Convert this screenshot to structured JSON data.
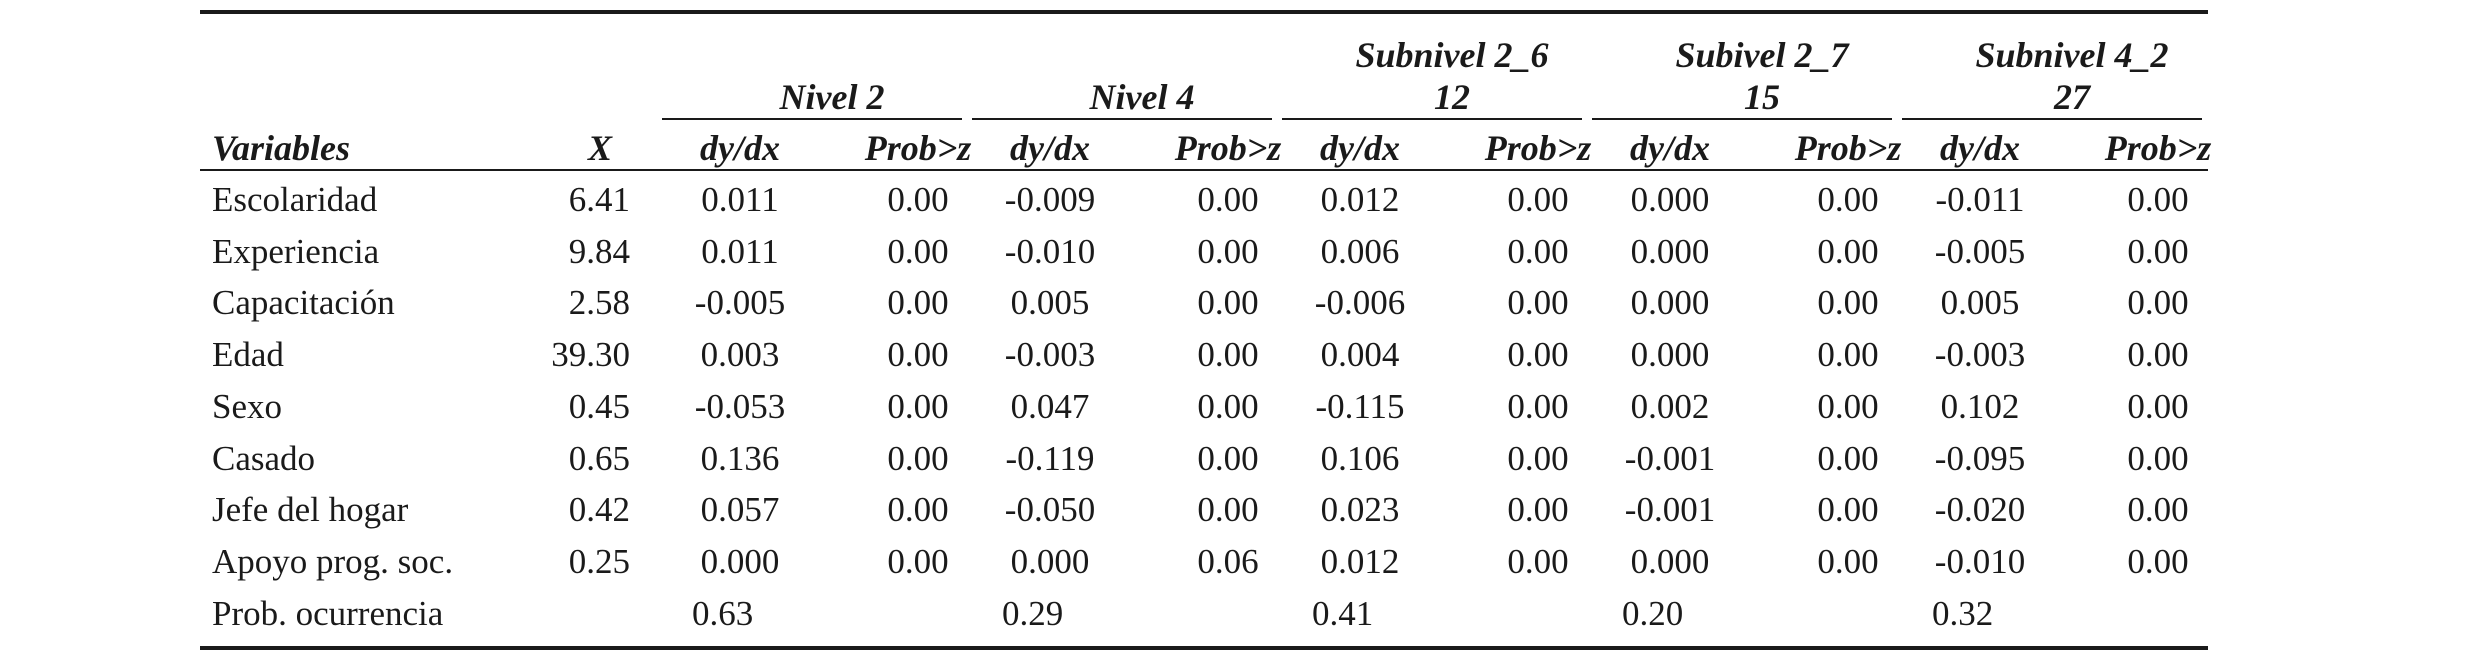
{
  "table": {
    "groups": [
      {
        "line1": "",
        "line2": "Nivel 2"
      },
      {
        "line1": "",
        "line2": "Nivel 4"
      },
      {
        "line1": "Subnivel 2_6",
        "line2": "12"
      },
      {
        "line1": "Subivel 2_7",
        "line2": "15"
      },
      {
        "line1": "Subnivel 4_2",
        "line2": "27"
      }
    ],
    "headers": {
      "variables": "Variables",
      "x": "X",
      "dydx": "dy/dx",
      "prob": "Prob>z"
    },
    "rows": [
      {
        "label": "Escolaridad",
        "x": "6.41",
        "cells": [
          "0.011",
          "0.00",
          "-0.009",
          "0.00",
          "0.012",
          "0.00",
          "0.000",
          "0.00",
          "-0.011",
          "0.00"
        ]
      },
      {
        "label": "Experiencia",
        "x": "9.84",
        "cells": [
          "0.011",
          "0.00",
          "-0.010",
          "0.00",
          "0.006",
          "0.00",
          "0.000",
          "0.00",
          "-0.005",
          "0.00"
        ]
      },
      {
        "label": "Capacitación",
        "x": "2.58",
        "cells": [
          "-0.005",
          "0.00",
          "0.005",
          "0.00",
          "-0.006",
          "0.00",
          "0.000",
          "0.00",
          "0.005",
          "0.00"
        ]
      },
      {
        "label": "Edad",
        "x": "39.30",
        "cells": [
          "0.003",
          "0.00",
          "-0.003",
          "0.00",
          "0.004",
          "0.00",
          "0.000",
          "0.00",
          "-0.003",
          "0.00"
        ]
      },
      {
        "label": "Sexo",
        "x": "0.45",
        "cells": [
          "-0.053",
          "0.00",
          "0.047",
          "0.00",
          "-0.115",
          "0.00",
          "0.002",
          "0.00",
          "0.102",
          "0.00"
        ]
      },
      {
        "label": "Casado",
        "x": "0.65",
        "cells": [
          "0.136",
          "0.00",
          "-0.119",
          "0.00",
          "0.106",
          "0.00",
          "-0.001",
          "0.00",
          "-0.095",
          "0.00"
        ]
      },
      {
        "label": "Jefe del hogar",
        "x": "0.42",
        "cells": [
          "0.057",
          "0.00",
          "-0.050",
          "0.00",
          "0.023",
          "0.00",
          "-0.001",
          "0.00",
          "-0.020",
          "0.00"
        ]
      },
      {
        "label": "Apoyo prog. soc.",
        "x": "0.25",
        "cells": [
          "0.000",
          "0.00",
          "0.000",
          "0.06",
          "0.012",
          "0.00",
          "0.000",
          "0.00",
          "-0.010",
          "0.00"
        ]
      }
    ],
    "footer": {
      "label": "Prob. ocurrencia",
      "values": [
        "0.63",
        "0.29",
        "0.41",
        "0.20",
        "0.32"
      ]
    }
  }
}
